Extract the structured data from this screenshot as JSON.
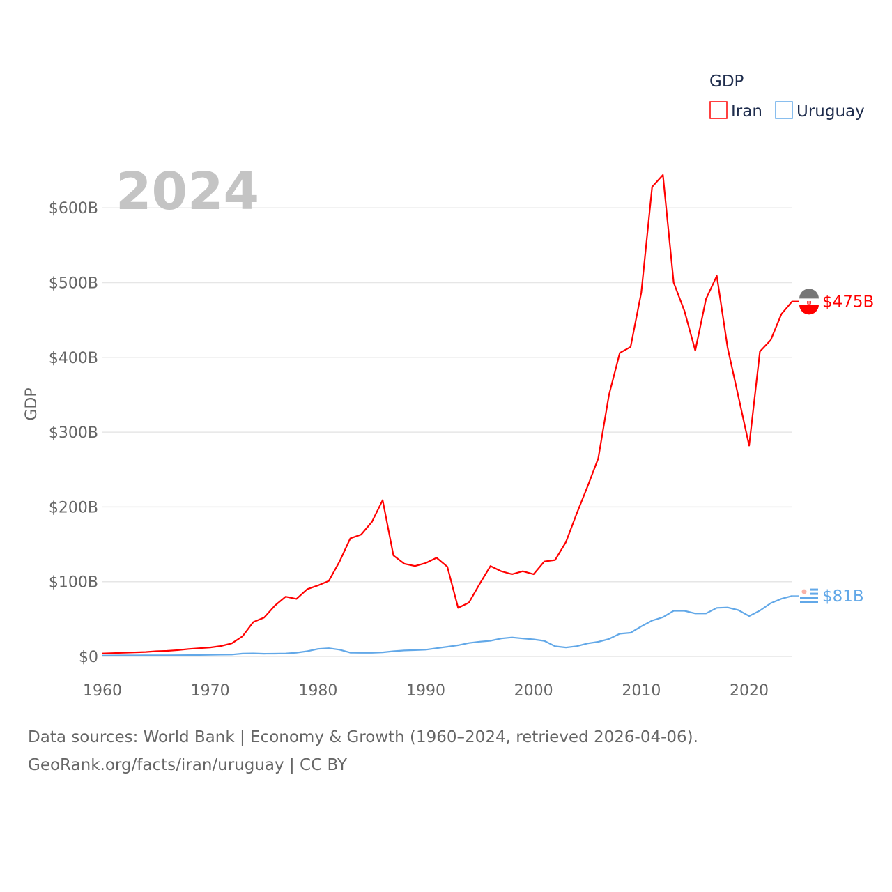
{
  "chart_data": {
    "type": "line",
    "title": "GDP",
    "year_label": "2024",
    "ylabel": "GDP",
    "xlabel": "",
    "xlim": [
      1960,
      2024
    ],
    "ylim": [
      0,
      650
    ],
    "x_ticks": [
      "1960",
      "1970",
      "1980",
      "1990",
      "2000",
      "2010",
      "2020"
    ],
    "x_tick_values": [
      1960,
      1970,
      1980,
      1990,
      2000,
      2010,
      2020
    ],
    "y_ticks": [
      "$0",
      "$100B",
      "$200B",
      "$300B",
      "$400B",
      "$500B",
      "$600B"
    ],
    "y_tick_values": [
      0,
      100,
      200,
      300,
      400,
      500,
      600
    ],
    "grid": true,
    "legend": {
      "title": "GDP",
      "placement": "top-right"
    },
    "x": [
      1960,
      1961,
      1962,
      1963,
      1964,
      1965,
      1966,
      1967,
      1968,
      1969,
      1970,
      1971,
      1972,
      1973,
      1974,
      1975,
      1976,
      1977,
      1978,
      1979,
      1980,
      1981,
      1982,
      1983,
      1984,
      1985,
      1986,
      1987,
      1988,
      1989,
      1990,
      1991,
      1992,
      1993,
      1994,
      1995,
      1996,
      1997,
      1998,
      1999,
      2000,
      2001,
      2002,
      2003,
      2004,
      2005,
      2006,
      2007,
      2008,
      2009,
      2010,
      2011,
      2012,
      2013,
      2014,
      2015,
      2016,
      2017,
      2018,
      2019,
      2020,
      2021,
      2022,
      2023,
      2024
    ],
    "series": [
      {
        "name": "Iran",
        "color": "#ff0000",
        "end_label": "$475B",
        "values": [
          4,
          4.5,
          5,
          5.5,
          6,
          7,
          7.5,
          8.5,
          10,
          11,
          12,
          14,
          17.5,
          27,
          46,
          52,
          68,
          80,
          77,
          90,
          95,
          101,
          127,
          158,
          163,
          180,
          209,
          135,
          124,
          121,
          125,
          132,
          120,
          65,
          72,
          97,
          121,
          114,
          110,
          114,
          110,
          127,
          129,
          153,
          191,
          227,
          265,
          350,
          406,
          414,
          487,
          628,
          644,
          500,
          462,
          409,
          478,
          509,
          413,
          348,
          282,
          408,
          423,
          458,
          475
        ]
      },
      {
        "name": "Uruguay",
        "color": "#62a8e8",
        "end_label": "$81B",
        "values": [
          1.2,
          1.3,
          1.4,
          1.4,
          1.5,
          1.6,
          1.6,
          1.7,
          1.8,
          2.0,
          2.2,
          2.4,
          2.5,
          3.8,
          4.1,
          3.6,
          3.7,
          4,
          5,
          7,
          10.1,
          11,
          9,
          5,
          4.8,
          4.8,
          5.5,
          7,
          8,
          8.5,
          9,
          11,
          13,
          15,
          18,
          19.8,
          21,
          24,
          25.4,
          24,
          22.8,
          20.9,
          13.6,
          12,
          13.7,
          17.4,
          19.6,
          23.4,
          30.4,
          31.7,
          40.3,
          48,
          52.5,
          61,
          61,
          57.5,
          57.5,
          65,
          65.5,
          62,
          54,
          61.4,
          71.2,
          77.2,
          81
        ]
      }
    ]
  },
  "footer": {
    "line1": "Data sources: World Bank | Economy & Growth (1960–2024, retrieved 2026-04-06).",
    "line2": "GeoRank.org/facts/iran/uruguay | CC BY"
  }
}
